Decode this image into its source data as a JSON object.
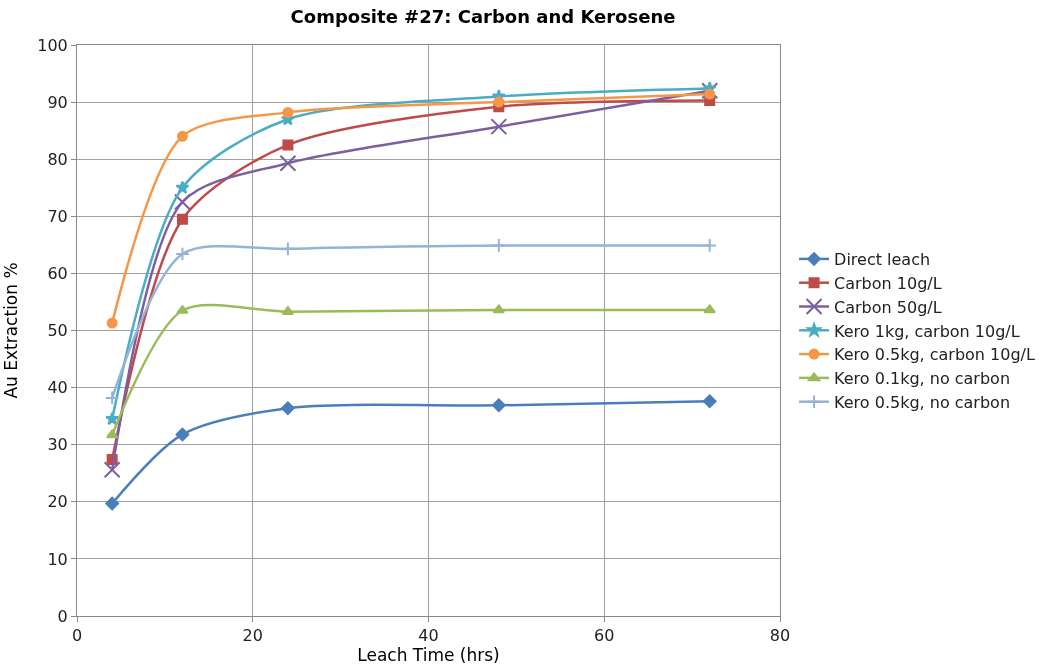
{
  "chart_data": {
    "type": "line",
    "title": "Composite #27: Carbon and Kerosene",
    "xlabel": "Leach Time (hrs)",
    "ylabel": "Au Extraction %",
    "x": [
      4,
      12,
      24,
      48,
      72
    ],
    "series": [
      {
        "name": "Direct leach",
        "color": "#4a7ebb",
        "marker": "diamond",
        "values": [
          19.7,
          31.8,
          36.4,
          36.9,
          37.6
        ]
      },
      {
        "name": "Carbon 10g/L",
        "color": "#be4b48",
        "marker": "square",
        "values": [
          27.4,
          69.5,
          82.5,
          89.2,
          90.3
        ]
      },
      {
        "name": "Carbon 50g/L",
        "color": "#7d5fa0",
        "marker": "x",
        "values": [
          25.6,
          72.5,
          79.3,
          85.7,
          92.0
        ]
      },
      {
        "name": "Kero 1kg, carbon 10g/L",
        "color": "#4bacc6",
        "marker": "star",
        "values": [
          34.5,
          75.0,
          87.0,
          91.0,
          92.4
        ]
      },
      {
        "name": "Kero 0.5kg, carbon 10g/L",
        "color": "#f79646",
        "marker": "circle",
        "values": [
          51.3,
          84.0,
          88.2,
          90.0,
          91.4
        ]
      },
      {
        "name": "Kero 0.1kg, no carbon",
        "color": "#9bbb59",
        "marker": "triangle",
        "values": [
          31.7,
          53.5,
          53.3,
          53.6,
          53.6
        ]
      },
      {
        "name": "Kero 0.5kg, no carbon",
        "color": "#95b3d7",
        "marker": "cross",
        "values": [
          38.2,
          63.4,
          64.3,
          64.9,
          64.9
        ]
      }
    ],
    "xlim": [
      0,
      80
    ],
    "xticks": [
      0,
      20,
      40,
      60,
      80
    ],
    "ylim": [
      0,
      100
    ],
    "yticks": [
      0,
      10,
      20,
      30,
      40,
      50,
      60,
      70,
      80,
      90,
      100
    ],
    "grid": true,
    "legend": "right",
    "line_style": "solid"
  }
}
